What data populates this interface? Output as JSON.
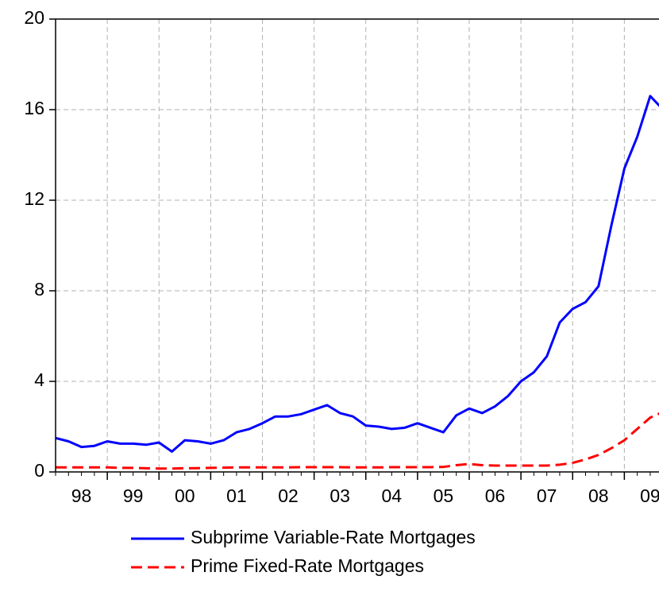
{
  "chart_data": {
    "type": "line",
    "x": [
      1998,
      1998.25,
      1998.5,
      1998.75,
      1999,
      1999.25,
      1999.5,
      1999.75,
      2000,
      2000.25,
      2000.5,
      2000.75,
      2001,
      2001.25,
      2001.5,
      2001.75,
      2002,
      2002.25,
      2002.5,
      2002.75,
      2003,
      2003.25,
      2003.5,
      2003.75,
      2004,
      2004.25,
      2004.5,
      2004.75,
      2005,
      2005.25,
      2005.5,
      2005.75,
      2006,
      2006.25,
      2006.5,
      2006.75,
      2007,
      2007.25,
      2007.5,
      2007.75,
      2008,
      2008.25,
      2008.5,
      2008.75,
      2009,
      2009.25,
      2009.5,
      2009.75
    ],
    "series": [
      {
        "name": "Subprime Variable-Rate Mortgages",
        "color": "#0000ff",
        "dash": false,
        "values": [
          1.5,
          1.35,
          1.1,
          1.15,
          1.35,
          1.25,
          1.25,
          1.2,
          1.3,
          0.9,
          1.4,
          1.35,
          1.25,
          1.4,
          1.75,
          1.9,
          2.15,
          2.45,
          2.45,
          2.55,
          2.75,
          2.95,
          2.6,
          2.45,
          2.05,
          2.0,
          1.9,
          1.95,
          2.15,
          1.95,
          1.75,
          2.5,
          2.8,
          2.6,
          2.9,
          3.35,
          4.0,
          4.4,
          5.1,
          6.6,
          7.2,
          7.5,
          8.2,
          10.9,
          13.4,
          14.8,
          16.6,
          16.0
        ]
      },
      {
        "name": "Prime Fixed-Rate Mortgages",
        "color": "#ff0000",
        "dash": true,
        "values": [
          0.2,
          0.2,
          0.2,
          0.2,
          0.2,
          0.18,
          0.18,
          0.16,
          0.15,
          0.15,
          0.16,
          0.17,
          0.18,
          0.19,
          0.2,
          0.2,
          0.2,
          0.2,
          0.2,
          0.21,
          0.21,
          0.21,
          0.21,
          0.2,
          0.2,
          0.2,
          0.21,
          0.21,
          0.21,
          0.21,
          0.22,
          0.3,
          0.35,
          0.3,
          0.28,
          0.28,
          0.28,
          0.28,
          0.28,
          0.32,
          0.4,
          0.55,
          0.75,
          1.05,
          1.4,
          1.9,
          2.4,
          2.65
        ]
      }
    ],
    "xlim": [
      1998,
      2009.67
    ],
    "xticks": [
      {
        "value": 1998.5,
        "label": "98"
      },
      {
        "value": 1999.5,
        "label": "99"
      },
      {
        "value": 2000.5,
        "label": "00"
      },
      {
        "value": 2001.5,
        "label": "01"
      },
      {
        "value": 2002.5,
        "label": "02"
      },
      {
        "value": 2003.5,
        "label": "03"
      },
      {
        "value": 2004.5,
        "label": "04"
      },
      {
        "value": 2005.5,
        "label": "05"
      },
      {
        "value": 2006.5,
        "label": "06"
      },
      {
        "value": 2007.5,
        "label": "07"
      },
      {
        "value": 2008.5,
        "label": "08"
      },
      {
        "value": 2009.5,
        "label": "09"
      }
    ],
    "xgrid": [
      1999,
      2000,
      2001,
      2002,
      2003,
      2004,
      2005,
      2006,
      2007,
      2008,
      2009
    ],
    "ylim": [
      0,
      20
    ],
    "yticks": [
      0,
      4,
      8,
      12,
      16,
      20
    ],
    "grid": true
  }
}
